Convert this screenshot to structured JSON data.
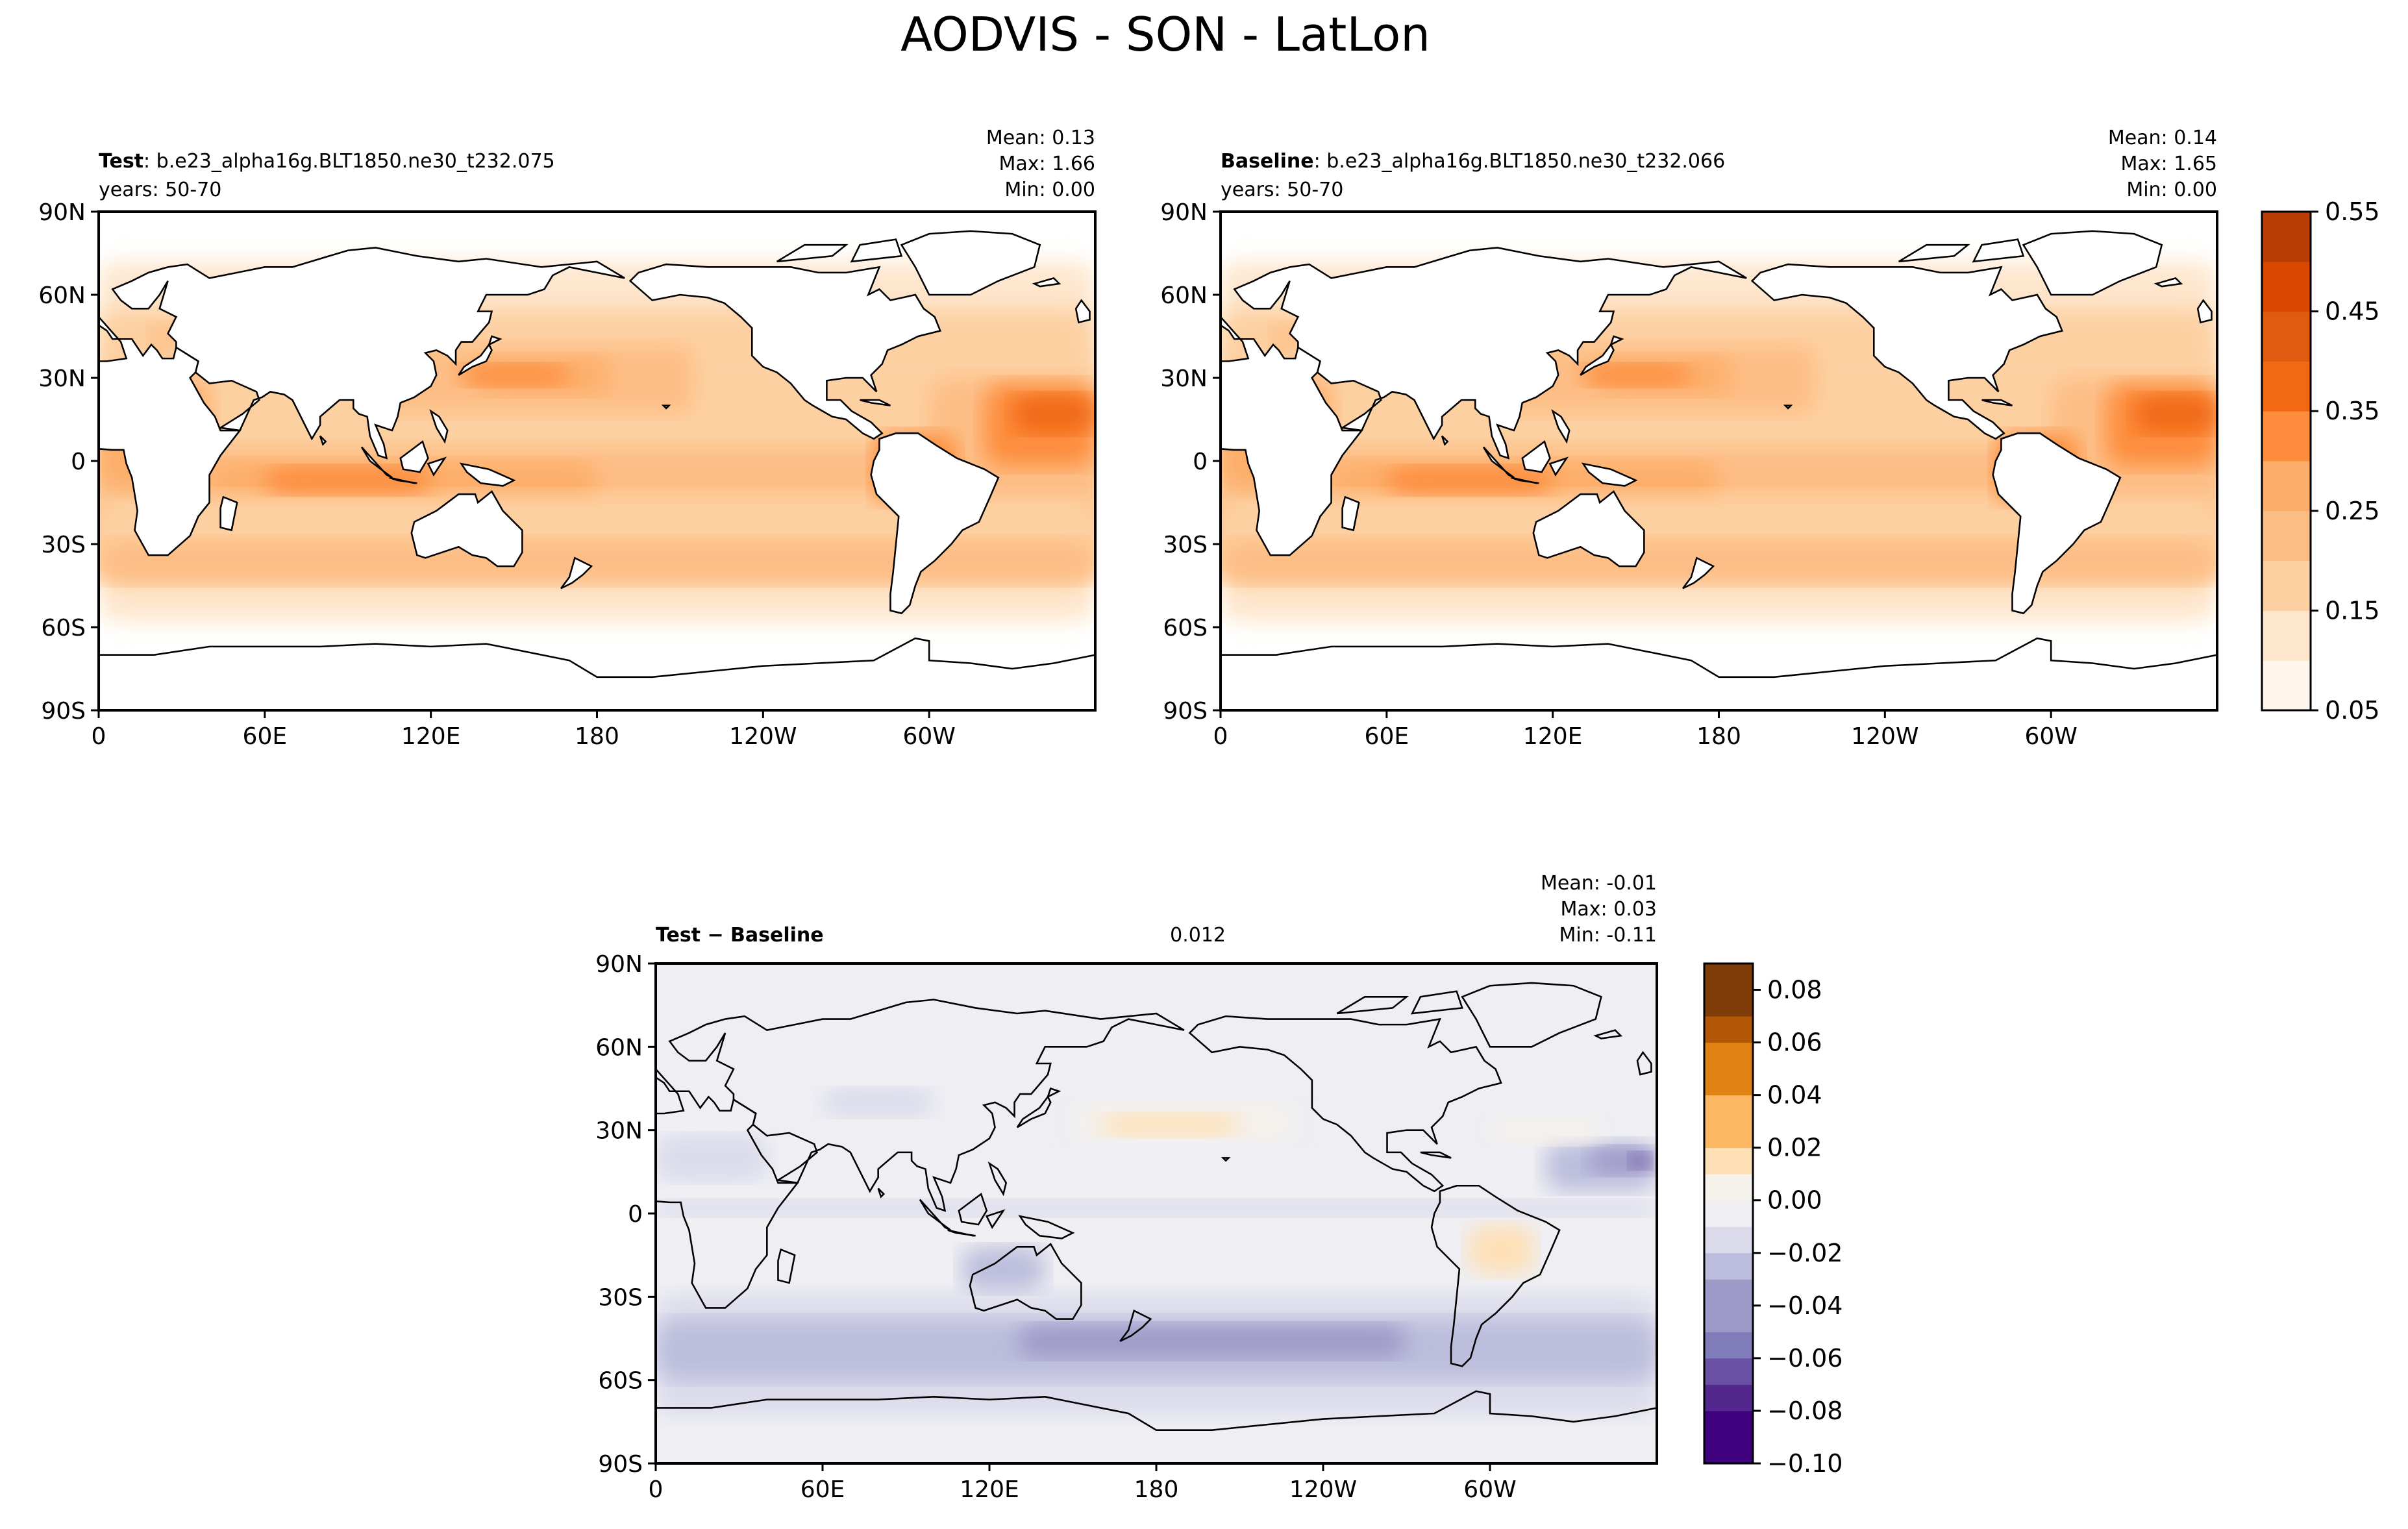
{
  "figure_title": "AODVIS - SON - LatLon",
  "colors": {
    "aod_scale": [
      "#fff5eb",
      "#fee6ce",
      "#fdd0a2",
      "#fdbe85",
      "#fdae6b",
      "#fd8d3c",
      "#f16913",
      "#e05a0f",
      "#d94801",
      "#b83e06",
      "#a63603",
      "#7f2704"
    ],
    "diff_scale": [
      "#3f007d",
      "#54278f",
      "#6a51a3",
      "#807dba",
      "#9e9ac8",
      "#bcbddc",
      "#dadaeb",
      "#eeeef3",
      "#f5f1eb",
      "#fee0b6",
      "#fdb863",
      "#e08214",
      "#b35806",
      "#7f3b08"
    ],
    "land": "#ffffff",
    "coast": "#000000"
  },
  "chart_data": [
    {
      "type": "heatmap",
      "panel": "test",
      "label_bold": "Test",
      "label_rest": ": b.e23_alpha16g.BLT1850.ne30_t232.075",
      "years": "years: 50-70",
      "stats": [
        "Mean:  0.13",
        "Max:  1.66",
        "Min:  0.00"
      ],
      "xticks": [
        "0",
        "60E",
        "120E",
        "180",
        "120W",
        "60W"
      ],
      "yticks": [
        "90N",
        "60N",
        "30N",
        "0",
        "30S",
        "60S",
        "90S"
      ],
      "lon_range": [
        0,
        360
      ],
      "lat_range": [
        -90,
        90
      ],
      "mean": 0.13,
      "max": 1.66,
      "min": 0.0
    },
    {
      "type": "heatmap",
      "panel": "baseline",
      "label_bold": "Baseline",
      "label_rest": ": b.e23_alpha16g.BLT1850.ne30_t232.066",
      "years": "years: 50-70",
      "stats": [
        "Mean:  0.14",
        "Max:  1.65",
        "Min:  0.00"
      ],
      "xticks": [
        "0",
        "60E",
        "120E",
        "180",
        "120W",
        "60W"
      ],
      "yticks": [
        "90N",
        "60N",
        "30N",
        "0",
        "30S",
        "60S",
        "90S"
      ],
      "lon_range": [
        0,
        360
      ],
      "lat_range": [
        -90,
        90
      ],
      "mean": 0.14,
      "max": 1.65,
      "min": 0.0
    },
    {
      "type": "heatmap",
      "panel": "difference",
      "label_bold": "Test − Baseline",
      "rmse": 0.012,
      "stats": [
        "Mean: -0.01",
        "Max:  0.03",
        "Min: -0.11"
      ],
      "xticks": [
        "0",
        "60E",
        "120E",
        "180",
        "120W",
        "60W"
      ],
      "yticks": [
        "90N",
        "60N",
        "30N",
        "0",
        "30S",
        "60S",
        "90S"
      ],
      "lon_range": [
        0,
        360
      ],
      "lat_range": [
        -90,
        90
      ],
      "mean": -0.01,
      "max": 0.03,
      "min": -0.11
    }
  ],
  "colorbars": {
    "aod": {
      "levels": [
        0.05,
        0.1,
        0.15,
        0.2,
        0.25,
        0.3,
        0.35,
        0.4,
        0.45,
        0.5,
        0.55
      ],
      "tick_labels": [
        "0.05",
        "0.15",
        "0.25",
        "0.35",
        "0.45",
        "0.55"
      ]
    },
    "diff": {
      "levels": [
        -0.1,
        -0.09,
        -0.08,
        -0.07,
        -0.06,
        -0.05,
        -0.04,
        -0.03,
        -0.02,
        -0.01,
        0.0,
        0.01,
        0.02,
        0.03,
        0.04,
        0.05,
        0.06,
        0.07,
        0.08,
        0.09
      ],
      "tick_labels": [
        "0.08",
        "0.06",
        "0.04",
        "0.02",
        "0.00",
        "−0.02",
        "−0.04",
        "−0.06",
        "−0.08",
        "−0.10"
      ]
    }
  }
}
